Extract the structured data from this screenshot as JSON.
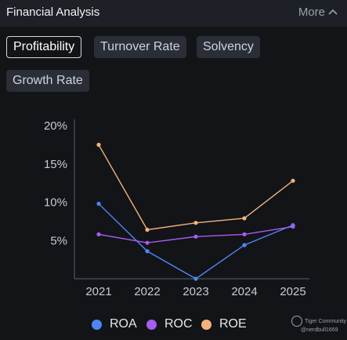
{
  "header": {
    "title": "Financial Analysis",
    "more_label": "More"
  },
  "tabs": [
    {
      "label": "Profitability",
      "active": true
    },
    {
      "label": "Turnover Rate",
      "active": false
    },
    {
      "label": "Solvency",
      "active": false
    },
    {
      "label": "Growth Rate",
      "active": false
    }
  ],
  "legend": [
    {
      "label": "ROA",
      "color": "#4f86f7"
    },
    {
      "label": "ROC",
      "color": "#a75cf0"
    },
    {
      "label": "ROE",
      "color": "#f4b27a"
    }
  ],
  "watermark": {
    "brand": "Tiger Community",
    "handle": "@nerdbull1669"
  },
  "chart_data": {
    "type": "line",
    "x": [
      "2021",
      "2022",
      "2023",
      "2024",
      "2025"
    ],
    "y_ticks": [
      "20%",
      "15%",
      "10%",
      "5%"
    ],
    "ylim": [
      0,
      20
    ],
    "series": [
      {
        "name": "ROA",
        "color": "#4f86f7",
        "values": [
          9.8,
          3.6,
          0,
          4.4,
          7.0
        ]
      },
      {
        "name": "ROC",
        "color": "#a75cf0",
        "values": [
          5.8,
          4.7,
          5.5,
          5.8,
          6.8
        ]
      },
      {
        "name": "ROE",
        "color": "#f4b27a",
        "values": [
          17.5,
          6.4,
          7.3,
          7.9,
          12.8
        ]
      }
    ]
  }
}
